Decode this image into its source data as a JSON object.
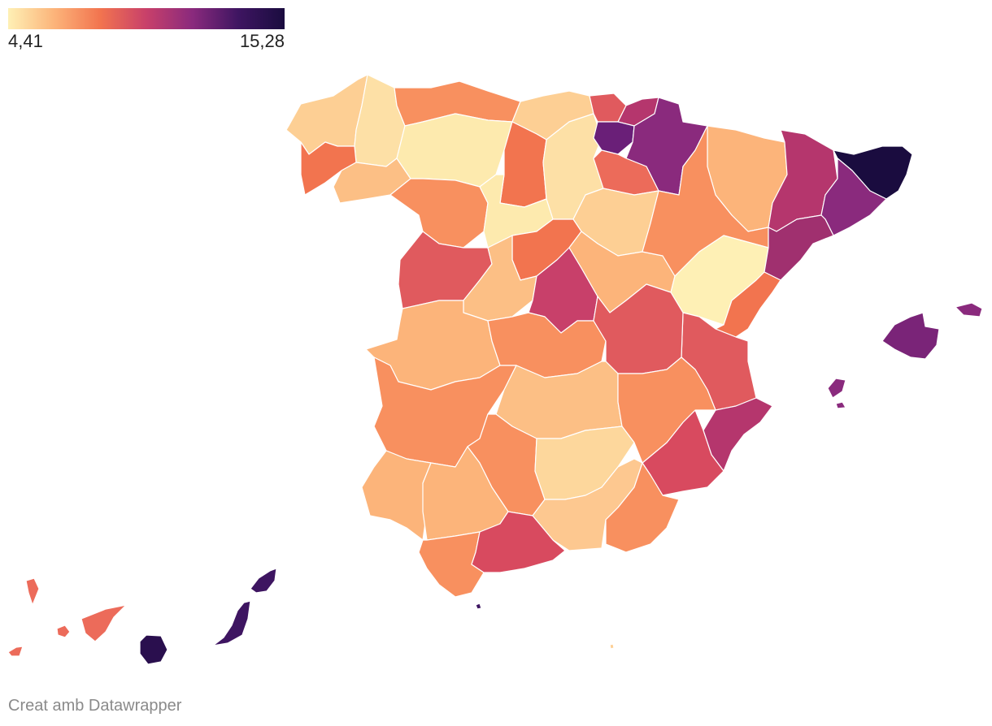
{
  "legend": {
    "min_label": "4,41",
    "max_label": "15,28",
    "min_value": 4.41,
    "max_value": 15.28,
    "gradient_colors": [
      "#fef0b5",
      "#fcb47a",
      "#f2744f",
      "#c8406a",
      "#8a2a7d",
      "#3e1561",
      "#1a0c3f"
    ]
  },
  "credit": "Creat amb Datawrapper",
  "map": {
    "regions": [
      {
        "name": "a-coruna",
        "color": "#fdcf94"
      },
      {
        "name": "lugo",
        "color": "#fde0a6"
      },
      {
        "name": "pontevedra",
        "color": "#f2744f"
      },
      {
        "name": "ourense",
        "color": "#fcbf85"
      },
      {
        "name": "asturias",
        "color": "#f8905f"
      },
      {
        "name": "cantabria",
        "color": "#fdcf94"
      },
      {
        "name": "bizkaia",
        "color": "#e05a5e"
      },
      {
        "name": "gipuzkoa",
        "color": "#b5366d"
      },
      {
        "name": "araba",
        "color": "#6a1f78"
      },
      {
        "name": "navarra",
        "color": "#8a2a7d"
      },
      {
        "name": "leon",
        "color": "#fdeaae"
      },
      {
        "name": "palencia",
        "color": "#f2744f"
      },
      {
        "name": "burgos",
        "color": "#fde0a6"
      },
      {
        "name": "la-rioja",
        "color": "#ec6b5a"
      },
      {
        "name": "zamora",
        "color": "#f8905f"
      },
      {
        "name": "valladolid",
        "color": "#fdeaae"
      },
      {
        "name": "soria",
        "color": "#fdcf94"
      },
      {
        "name": "salamanca",
        "color": "#e05a5e"
      },
      {
        "name": "avila",
        "color": "#fcbf85"
      },
      {
        "name": "segovia",
        "color": "#f2744f"
      },
      {
        "name": "madrid",
        "color": "#c8406a"
      },
      {
        "name": "guadalajara",
        "color": "#fcb47a"
      },
      {
        "name": "huesca",
        "color": "#fcb47a"
      },
      {
        "name": "zaragoza",
        "color": "#f8905f"
      },
      {
        "name": "teruel",
        "color": "#fef0b5"
      },
      {
        "name": "lleida",
        "color": "#b5366d"
      },
      {
        "name": "girona",
        "color": "#1a0c3f"
      },
      {
        "name": "barcelona",
        "color": "#8a2a7d"
      },
      {
        "name": "tarragona",
        "color": "#a0306f"
      },
      {
        "name": "castellon",
        "color": "#f2744f"
      },
      {
        "name": "valencia",
        "color": "#e05a5e"
      },
      {
        "name": "alicante",
        "color": "#b5366d"
      },
      {
        "name": "murcia",
        "color": "#d84a5f"
      },
      {
        "name": "caceres",
        "color": "#fcb47a"
      },
      {
        "name": "toledo",
        "color": "#f8905f"
      },
      {
        "name": "cuenca",
        "color": "#e05a5e"
      },
      {
        "name": "badajoz",
        "color": "#f8905f"
      },
      {
        "name": "ciudad-real",
        "color": "#fcbf85"
      },
      {
        "name": "albacete",
        "color": "#f8905f"
      },
      {
        "name": "huelva",
        "color": "#fcb47a"
      },
      {
        "name": "sevilla",
        "color": "#fcb47a"
      },
      {
        "name": "cordoba",
        "color": "#f8905f"
      },
      {
        "name": "jaen",
        "color": "#fdd79c"
      },
      {
        "name": "granada",
        "color": "#fdc890"
      },
      {
        "name": "almeria",
        "color": "#f8905f"
      },
      {
        "name": "cadiz",
        "color": "#f8905f"
      },
      {
        "name": "malaga",
        "color": "#d84a5f"
      },
      {
        "name": "mallorca",
        "color": "#7a2478"
      },
      {
        "name": "menorca",
        "color": "#8a2a7d"
      },
      {
        "name": "ibiza",
        "color": "#8a2a7d"
      },
      {
        "name": "formentera",
        "color": "#8a2a7d"
      },
      {
        "name": "la-palma",
        "color": "#ec6b5a"
      },
      {
        "name": "el-hierro",
        "color": "#ec6b5a"
      },
      {
        "name": "la-gomera",
        "color": "#ec6b5a"
      },
      {
        "name": "tenerife",
        "color": "#ec6b5a"
      },
      {
        "name": "gran-canaria",
        "color": "#2a0f4e"
      },
      {
        "name": "fuerteventura",
        "color": "#3e1561"
      },
      {
        "name": "lanzarote",
        "color": "#3e1561"
      },
      {
        "name": "ceuta",
        "color": "#3e1561"
      },
      {
        "name": "melilla",
        "color": "#fdcf94"
      }
    ]
  }
}
